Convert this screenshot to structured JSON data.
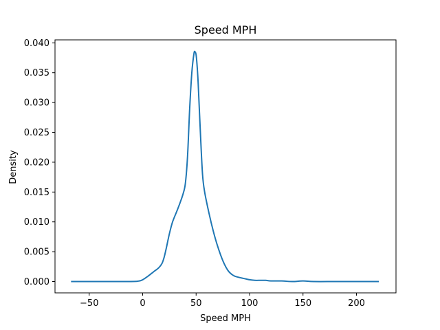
{
  "chart_data": {
    "type": "line",
    "title": "Speed MPH",
    "xlabel": "Speed MPH",
    "ylabel": "Density",
    "xlim": [
      -82,
      237
    ],
    "ylim": [
      -0.0019,
      0.0405
    ],
    "xticks": [
      -50,
      0,
      50,
      100,
      150,
      200
    ],
    "xtick_labels": [
      "−50",
      "0",
      "50",
      "100",
      "150",
      "200"
    ],
    "yticks": [
      0.0,
      0.005,
      0.01,
      0.015,
      0.02,
      0.025,
      0.03,
      0.035,
      0.04
    ],
    "ytick_labels": [
      "0.000",
      "0.005",
      "0.010",
      "0.015",
      "0.020",
      "0.025",
      "0.030",
      "0.035",
      "0.040"
    ],
    "grid": false,
    "color": "#1f77b4",
    "series": [
      {
        "x": [
          -67,
          -40,
          -20,
          -5,
          0,
          5,
          10,
          15,
          18,
          20,
          22,
          25,
          28,
          32,
          35,
          38,
          40,
          42,
          44,
          46,
          48,
          49,
          50,
          51,
          52,
          54,
          56,
          58,
          62,
          66,
          70,
          75,
          80,
          85,
          90,
          95,
          100,
          105,
          110,
          115,
          120,
          130,
          140,
          150,
          160,
          180,
          200,
          221
        ],
        "y": [
          0.0,
          0.0,
          0.0,
          5e-05,
          0.0003,
          0.0009,
          0.0016,
          0.0023,
          0.003,
          0.004,
          0.0055,
          0.008,
          0.01,
          0.0118,
          0.0132,
          0.0148,
          0.0165,
          0.021,
          0.029,
          0.035,
          0.0382,
          0.0385,
          0.038,
          0.036,
          0.033,
          0.025,
          0.018,
          0.015,
          0.0115,
          0.0085,
          0.006,
          0.0035,
          0.0018,
          0.001,
          0.0007,
          0.0005,
          0.0003,
          0.0002,
          0.0002,
          0.0002,
          0.0001,
          0.0001,
          0.0,
          0.0001,
          0.0,
          0.0,
          0.0,
          0.0
        ]
      }
    ]
  }
}
